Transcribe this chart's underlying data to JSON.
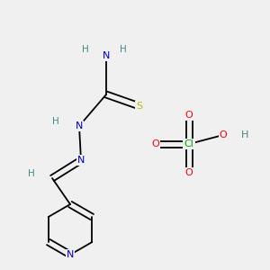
{
  "bg_color": "#f0f0f0",
  "atom_colors": {
    "C": "#000000",
    "N": "#0000cc",
    "S": "#bbbb00",
    "H": "#448888",
    "O": "#ff0000",
    "Cl": "#00aa00"
  },
  "bond_color": "#000000",
  "font_size": 7.5
}
